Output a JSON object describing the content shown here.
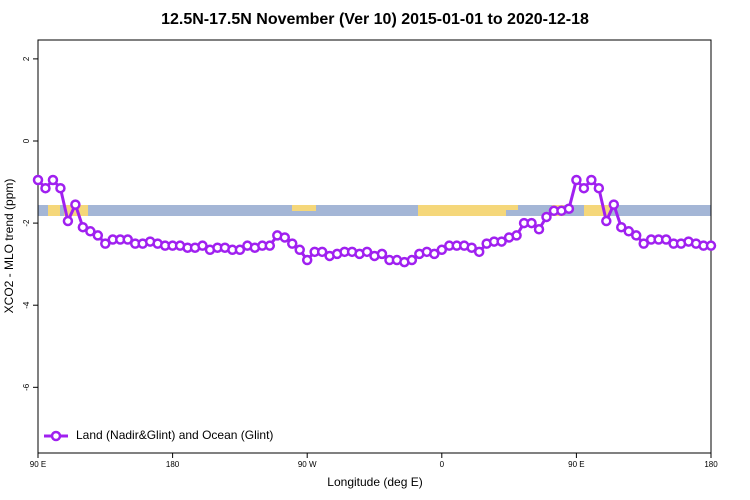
{
  "chart_data": {
    "type": "line",
    "title": "12.5N-17.5N November (Ver 10)   2015-01-01 to 2020-12-18",
    "x_label": "Longitude (deg E)",
    "y_label": "XCO2 - MLO trend (ppm)",
    "xlim": [
      90,
      540
    ],
    "ylim": [
      -7.6,
      2.46
    ],
    "xticks": [
      {
        "value": 90,
        "label": "90 E"
      },
      {
        "value": 180,
        "label": "180"
      },
      {
        "value": 270,
        "label": "90 W"
      },
      {
        "value": 360,
        "label": "0"
      },
      {
        "value": 450,
        "label": "90 E"
      },
      {
        "value": 540,
        "label": "180"
      }
    ],
    "yticks": [
      2,
      0,
      -2,
      -4,
      -6
    ],
    "legend": "bottomleft",
    "x": [
      90,
      95,
      100,
      105,
      110,
      115,
      120,
      125,
      130,
      135,
      140,
      145,
      150,
      155,
      160,
      165,
      170,
      175,
      180,
      185,
      190,
      195,
      200,
      205,
      210,
      215,
      220,
      225,
      230,
      235,
      240,
      245,
      250,
      255,
      260,
      265,
      270,
      275,
      280,
      285,
      290,
      295,
      300,
      305,
      310,
      315,
      320,
      325,
      330,
      335,
      340,
      345,
      350,
      355,
      360,
      365,
      370,
      375,
      380,
      385,
      390,
      395,
      400,
      405,
      410,
      415,
      420,
      425,
      430,
      435,
      440,
      445,
      450,
      455,
      460,
      465,
      470,
      475,
      480,
      485,
      490,
      495,
      500,
      505,
      510,
      515,
      520,
      525,
      530,
      535,
      540
    ],
    "series": [
      {
        "name": "Land (Nadir&Glint) and Ocean (Glint)",
        "color": "#a020f0",
        "values": [
          -0.95,
          -1.15,
          -0.95,
          -1.15,
          -1.95,
          -1.55,
          -2.1,
          -2.2,
          -2.3,
          -2.5,
          -2.4,
          -2.4,
          -2.4,
          -2.5,
          -2.5,
          -2.45,
          -2.5,
          -2.55,
          -2.55,
          -2.55,
          -2.6,
          -2.6,
          -2.55,
          -2.65,
          -2.6,
          -2.6,
          -2.65,
          -2.65,
          -2.55,
          -2.6,
          -2.55,
          -2.55,
          -2.3,
          -2.35,
          -2.5,
          -2.65,
          -2.9,
          -2.7,
          -2.7,
          -2.8,
          -2.75,
          -2.7,
          -2.7,
          -2.75,
          -2.7,
          -2.8,
          -2.75,
          -2.9,
          -2.9,
          -2.95,
          -2.9,
          -2.75,
          -2.7,
          -2.75,
          -2.65,
          -2.55,
          -2.55,
          -2.55,
          -2.6,
          -2.7,
          -2.5,
          -2.45,
          -2.45,
          -2.35,
          -2.3,
          -2.0,
          -2.0,
          -2.15,
          -1.85,
          -1.7,
          -1.7,
          -1.65,
          -0.95,
          -1.15,
          -0.95,
          -1.15,
          -1.95,
          -1.55,
          -2.1,
          -2.2,
          -2.3,
          -2.5,
          -2.4,
          -2.4,
          -2.4,
          -2.5,
          -2.5,
          -2.45,
          -2.5,
          -2.55,
          -2.55
        ]
      }
    ]
  }
}
